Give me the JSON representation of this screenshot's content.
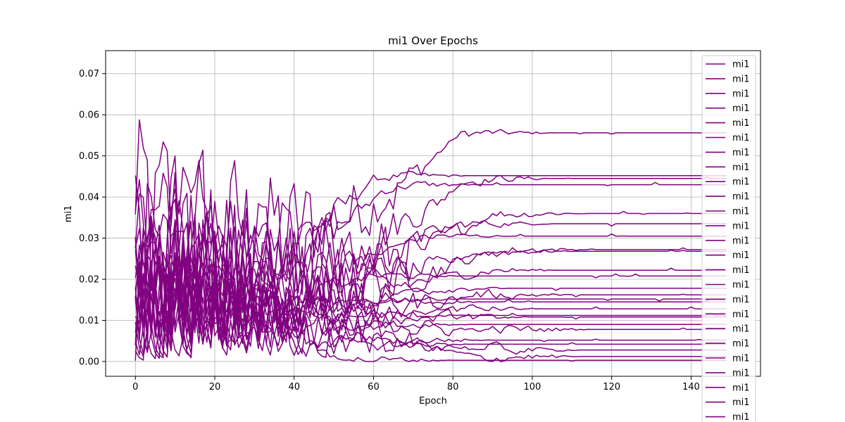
{
  "chart_data": {
    "type": "line",
    "title": "mi1 Over Epochs",
    "xlabel": "Epoch",
    "ylabel": "mi1",
    "xlim": [
      -7.5,
      157.5
    ],
    "ylim": [
      -0.0036,
      0.0756
    ],
    "x_ticks": [
      0,
      20,
      40,
      60,
      80,
      100,
      120,
      140
    ],
    "x_tick_labels": [
      "0",
      "20",
      "40",
      "60",
      "80",
      "100",
      "120",
      "140"
    ],
    "y_ticks": [
      0.0,
      0.01,
      0.02,
      0.03,
      0.04,
      0.05,
      0.06,
      0.07
    ],
    "y_tick_labels": [
      "0.00",
      "0.01",
      "0.02",
      "0.03",
      "0.04",
      "0.05",
      "0.06",
      "0.07"
    ],
    "grid": true,
    "legend_position": "top-right",
    "line_color": "#800080",
    "series_count": 25,
    "epochs": 150,
    "series_final_values": [
      0.0556,
      0.0452,
      0.0445,
      0.043,
      0.036,
      0.0335,
      0.0305,
      0.0272,
      0.0268,
      0.0222,
      0.0208,
      0.0178,
      0.0162,
      0.0152,
      0.0145,
      0.0128,
      0.0112,
      0.0108,
      0.009,
      0.0078,
      0.0052,
      0.0042,
      0.0028,
      0.0012,
      0.0003
    ],
    "series": [
      {
        "name": "mi1"
      },
      {
        "name": "mi1"
      },
      {
        "name": "mi1"
      },
      {
        "name": "mi1"
      },
      {
        "name": "mi1"
      },
      {
        "name": "mi1"
      },
      {
        "name": "mi1"
      },
      {
        "name": "mi1"
      },
      {
        "name": "mi1"
      },
      {
        "name": "mi1"
      },
      {
        "name": "mi1"
      },
      {
        "name": "mi1"
      },
      {
        "name": "mi1"
      },
      {
        "name": "mi1"
      },
      {
        "name": "mi1"
      },
      {
        "name": "mi1"
      },
      {
        "name": "mi1"
      },
      {
        "name": "mi1"
      },
      {
        "name": "mi1"
      },
      {
        "name": "mi1"
      },
      {
        "name": "mi1"
      },
      {
        "name": "mi1"
      },
      {
        "name": "mi1"
      },
      {
        "name": "mi1"
      },
      {
        "name": "mi1"
      }
    ]
  }
}
